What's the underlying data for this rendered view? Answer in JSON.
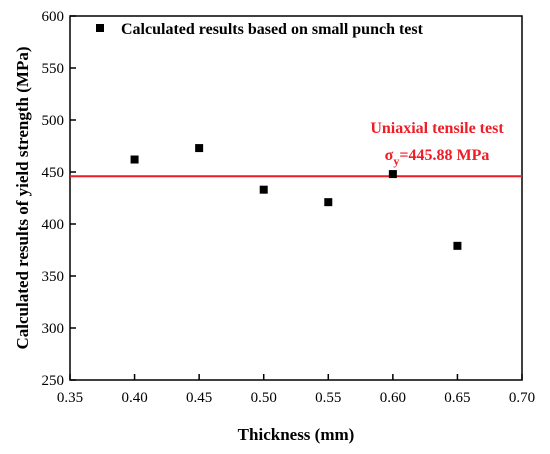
{
  "chart_data": {
    "type": "scatter",
    "xlabel": "Thickness (mm)",
    "ylabel": "Calculated results of yield strength (MPa)",
    "xlim": [
      0.35,
      0.7
    ],
    "ylim": [
      250,
      600
    ],
    "xticks": [
      "0.35",
      "0.40",
      "0.45",
      "0.50",
      "0.55",
      "0.60",
      "0.65",
      "0.70"
    ],
    "yticks": [
      "250",
      "300",
      "350",
      "400",
      "450",
      "500",
      "550",
      "600"
    ],
    "grid": false,
    "legend_position": "top",
    "series": [
      {
        "name": "Calculated results based on small punch test",
        "marker": "square",
        "color": "#000000",
        "x": [
          0.4,
          0.45,
          0.5,
          0.55,
          0.6,
          0.65
        ],
        "y": [
          462,
          473,
          433,
          421,
          448,
          379
        ]
      }
    ],
    "reference_line": {
      "value": 445.88,
      "color": "#ee1c25",
      "label_line1": "Uniaxial tensile test",
      "label_sigma": "σ",
      "label_sub": "y",
      "label_value": "=445.88 MPa"
    }
  }
}
